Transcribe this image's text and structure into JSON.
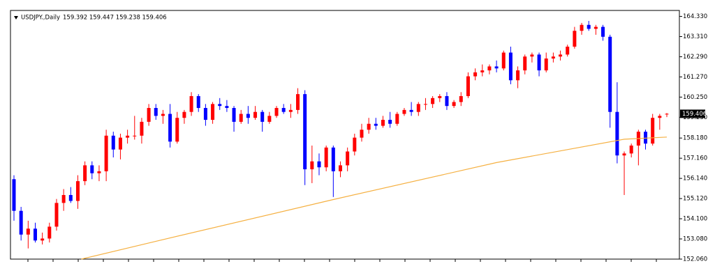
{
  "chart_data": {
    "type": "candlestick",
    "title": "USDJPY.,Daily",
    "subtitle": "159.392 159.447 159.238 159.406",
    "up_color": "#ff0000",
    "down_color": "#0000ff",
    "ma_color": "#f5b041",
    "ylim": [
      152.06,
      164.63
    ],
    "yticks": [
      {
        "value": 152.06,
        "label": "152.060"
      },
      {
        "value": 153.08,
        "label": "153.080"
      },
      {
        "value": 154.1,
        "label": "154.100"
      },
      {
        "value": 155.12,
        "label": "155.120"
      },
      {
        "value": 156.14,
        "label": "156.140"
      },
      {
        "value": 157.16,
        "label": "157.160"
      },
      {
        "value": 158.18,
        "label": "158.180"
      },
      {
        "value": 159.23,
        "label": "159.230"
      },
      {
        "value": 160.25,
        "label": "160.250"
      },
      {
        "value": 161.27,
        "label": "161.270"
      },
      {
        "value": 162.29,
        "label": "162.290"
      },
      {
        "value": 163.31,
        "label": "163.310"
      },
      {
        "value": 164.33,
        "label": "164.330"
      }
    ],
    "last_price": 159.406,
    "ohlc": [
      [
        156.1,
        156.3,
        154.0,
        154.5
      ],
      [
        154.5,
        154.7,
        153.0,
        153.3
      ],
      [
        153.3,
        154.0,
        152.6,
        153.6
      ],
      [
        153.6,
        153.9,
        152.9,
        153.0
      ],
      [
        153.0,
        153.4,
        152.8,
        153.1
      ],
      [
        153.1,
        153.9,
        152.9,
        153.7
      ],
      [
        153.7,
        155.1,
        153.5,
        154.9
      ],
      [
        154.9,
        155.6,
        154.5,
        155.3
      ],
      [
        155.3,
        155.7,
        154.9,
        155.0
      ],
      [
        155.0,
        156.3,
        154.6,
        156.0
      ],
      [
        156.0,
        157.0,
        155.8,
        156.8
      ],
      [
        156.8,
        157.0,
        156.1,
        156.4
      ],
      [
        156.4,
        156.8,
        156.0,
        156.5
      ],
      [
        156.5,
        158.6,
        156.0,
        158.3
      ],
      [
        158.3,
        158.5,
        157.2,
        157.6
      ],
      [
        157.6,
        158.4,
        157.1,
        158.2
      ],
      [
        158.2,
        158.6,
        157.9,
        158.3
      ],
      [
        158.3,
        159.3,
        158.1,
        158.3
      ],
      [
        158.3,
        159.2,
        157.9,
        159.0
      ],
      [
        159.0,
        159.9,
        158.8,
        159.7
      ],
      [
        159.7,
        159.9,
        159.1,
        159.3
      ],
      [
        159.3,
        159.6,
        158.9,
        159.4
      ],
      [
        159.4,
        159.9,
        157.7,
        158.0
      ],
      [
        158.0,
        159.5,
        157.9,
        159.2
      ],
      [
        159.2,
        159.6,
        158.9,
        159.5
      ],
      [
        159.5,
        160.5,
        159.3,
        160.3
      ],
      [
        160.3,
        160.4,
        159.5,
        159.7
      ],
      [
        159.7,
        159.9,
        158.8,
        159.1
      ],
      [
        159.1,
        160.0,
        158.9,
        159.9
      ],
      [
        159.9,
        160.2,
        159.6,
        159.8
      ],
      [
        159.8,
        160.1,
        159.5,
        159.7
      ],
      [
        159.7,
        159.8,
        158.5,
        159.0
      ],
      [
        159.0,
        159.6,
        158.9,
        159.4
      ],
      [
        159.4,
        159.8,
        158.9,
        159.2
      ],
      [
        159.2,
        159.8,
        159.1,
        159.5
      ],
      [
        159.5,
        159.6,
        158.5,
        159.0
      ],
      [
        159.0,
        159.5,
        158.9,
        159.3
      ],
      [
        159.3,
        159.8,
        159.2,
        159.7
      ],
      [
        159.7,
        159.9,
        159.4,
        159.5
      ],
      [
        159.5,
        159.9,
        159.2,
        159.6
      ],
      [
        159.6,
        160.7,
        159.4,
        160.4
      ],
      [
        160.4,
        160.6,
        155.8,
        156.6
      ],
      [
        156.6,
        157.8,
        155.9,
        157.0
      ],
      [
        157.0,
        157.4,
        156.3,
        156.7
      ],
      [
        156.7,
        157.8,
        156.5,
        157.7
      ],
      [
        157.7,
        157.8,
        155.2,
        156.5
      ],
      [
        156.5,
        157.0,
        156.2,
        156.8
      ],
      [
        156.8,
        157.7,
        156.5,
        157.5
      ],
      [
        157.5,
        158.4,
        157.3,
        158.2
      ],
      [
        158.2,
        158.9,
        158.0,
        158.6
      ],
      [
        158.6,
        159.2,
        158.4,
        158.9
      ],
      [
        158.9,
        159.2,
        158.6,
        158.8
      ],
      [
        158.8,
        159.3,
        158.7,
        159.1
      ],
      [
        159.1,
        159.5,
        158.7,
        158.9
      ],
      [
        158.9,
        159.5,
        158.8,
        159.4
      ],
      [
        159.4,
        159.7,
        159.3,
        159.6
      ],
      [
        159.6,
        160.0,
        159.3,
        159.5
      ],
      [
        159.5,
        160.0,
        159.3,
        159.9
      ],
      [
        159.9,
        160.2,
        159.6,
        159.9
      ],
      [
        159.9,
        160.3,
        159.7,
        160.2
      ],
      [
        160.2,
        160.4,
        160.0,
        160.3
      ],
      [
        160.3,
        160.5,
        159.6,
        159.8
      ],
      [
        159.8,
        160.1,
        159.7,
        160.0
      ],
      [
        160.0,
        160.5,
        159.8,
        160.3
      ],
      [
        160.3,
        161.5,
        160.2,
        161.3
      ],
      [
        161.3,
        161.7,
        161.1,
        161.5
      ],
      [
        161.5,
        161.9,
        161.3,
        161.6
      ],
      [
        161.6,
        161.9,
        161.4,
        161.8
      ],
      [
        161.8,
        162.1,
        161.5,
        161.7
      ],
      [
        161.7,
        162.6,
        161.6,
        162.5
      ],
      [
        162.5,
        162.8,
        160.9,
        161.1
      ],
      [
        161.1,
        161.8,
        160.7,
        161.6
      ],
      [
        161.6,
        162.4,
        161.4,
        162.3
      ],
      [
        162.3,
        162.5,
        162.0,
        162.4
      ],
      [
        162.4,
        162.5,
        161.3,
        161.6
      ],
      [
        161.6,
        162.5,
        161.5,
        162.2
      ],
      [
        162.2,
        162.5,
        162.0,
        162.3
      ],
      [
        162.3,
        162.6,
        162.1,
        162.4
      ],
      [
        162.4,
        162.9,
        162.3,
        162.8
      ],
      [
        162.8,
        163.8,
        162.7,
        163.6
      ],
      [
        163.6,
        164.0,
        163.4,
        163.9
      ],
      [
        163.9,
        164.1,
        163.6,
        163.7
      ],
      [
        163.7,
        163.9,
        163.4,
        163.8
      ],
      [
        163.8,
        163.9,
        163.1,
        163.3
      ],
      [
        163.3,
        163.4,
        158.7,
        159.5
      ],
      [
        159.5,
        161.0,
        156.9,
        157.3
      ],
      [
        157.3,
        157.5,
        155.3,
        157.4
      ],
      [
        157.4,
        157.9,
        157.2,
        157.8
      ],
      [
        157.8,
        158.6,
        156.8,
        158.5
      ],
      [
        158.5,
        158.6,
        157.6,
        157.9
      ],
      [
        157.9,
        159.4,
        157.8,
        159.2
      ],
      [
        159.2,
        159.4,
        158.6,
        159.3
      ],
      [
        159.392,
        159.447,
        159.238,
        159.406
      ]
    ],
    "ma": {
      "x": [
        9.5,
        20,
        45,
        68,
        86,
        92
      ],
      "values": [
        152.06,
        152.96,
        155.07,
        156.94,
        158.12,
        158.23
      ]
    }
  }
}
